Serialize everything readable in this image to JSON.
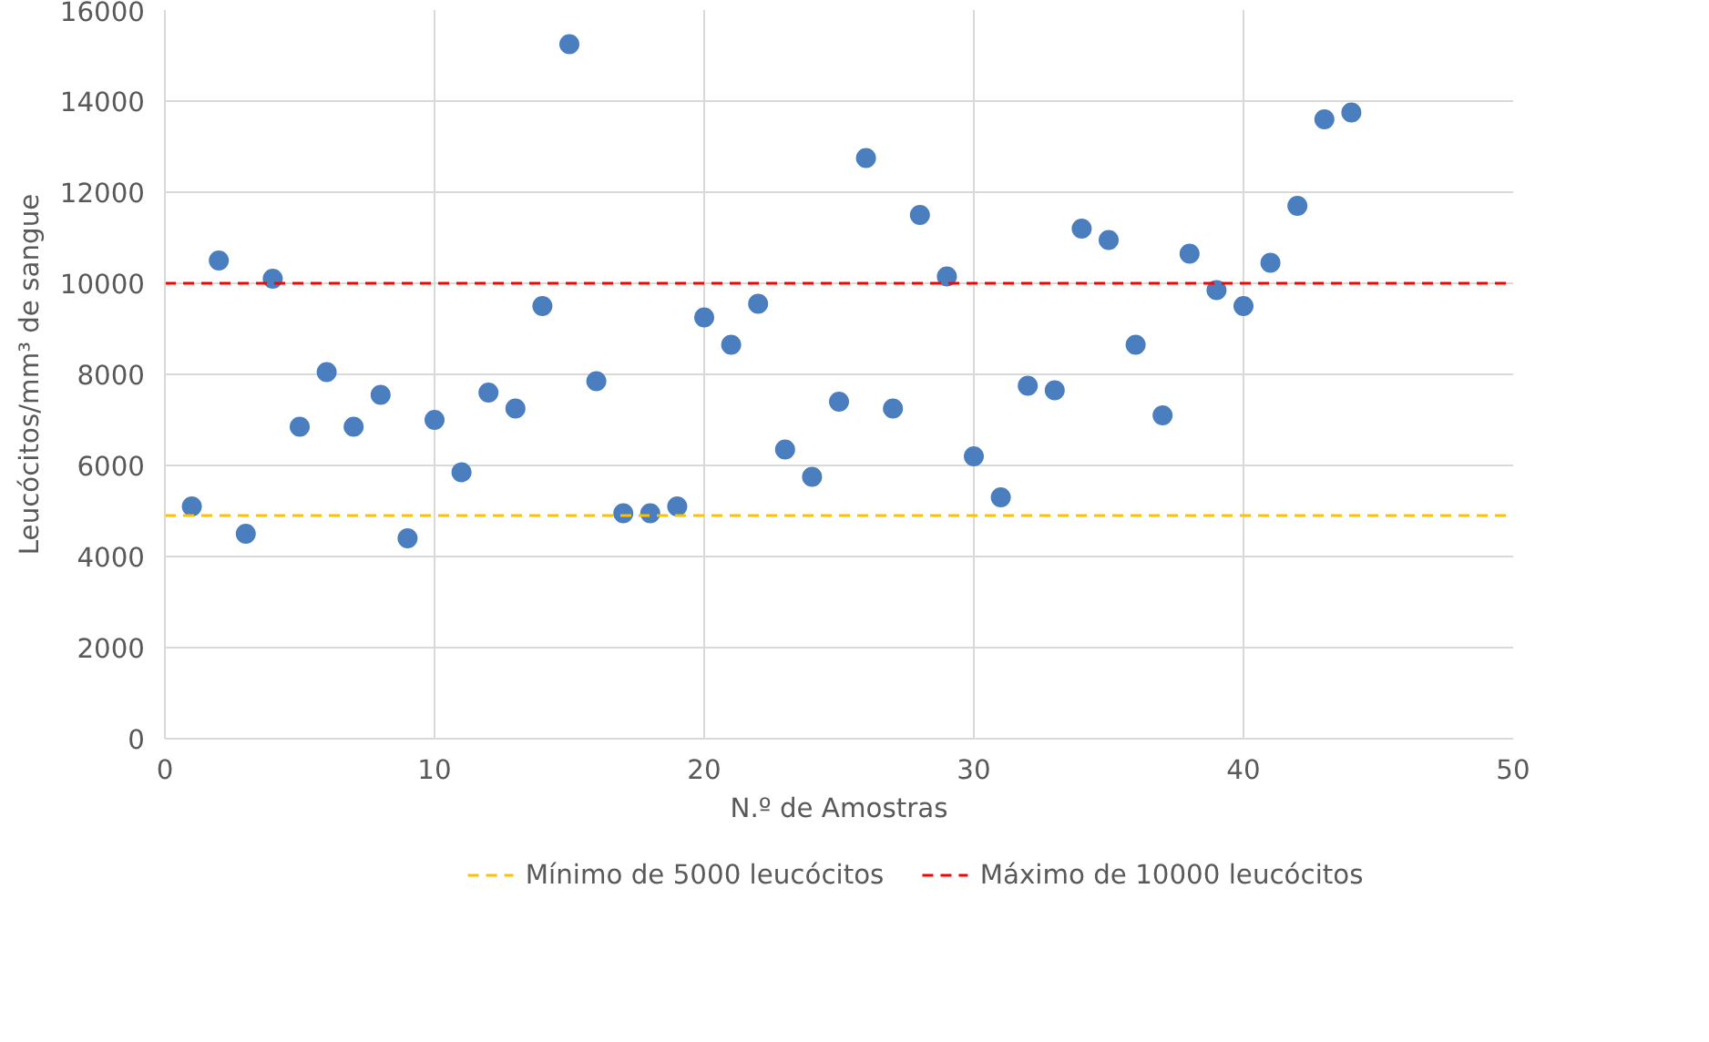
{
  "chart_data": {
    "type": "scatter",
    "xlabel": "N.º de Amostras",
    "ylabel": "Leucócitos/mm³ de sangue",
    "x": [
      1,
      2,
      3,
      4,
      5,
      6,
      7,
      8,
      9,
      10,
      11,
      12,
      13,
      14,
      15,
      16,
      17,
      18,
      19,
      20,
      21,
      22,
      23,
      24,
      25,
      26,
      27,
      28,
      29,
      30,
      31,
      32,
      33,
      34,
      35,
      36,
      37,
      38,
      39,
      40,
      41,
      42,
      43,
      44
    ],
    "series": [
      {
        "color": "#4a7ebf",
        "values": [
          5100,
          10500,
          4500,
          10100,
          6850,
          8050,
          6850,
          7550,
          4400,
          7000,
          5850,
          7600,
          7250,
          9500,
          15250,
          7850,
          4950,
          4950,
          5100,
          9250,
          8650,
          9550,
          6350,
          5750,
          7400,
          12750,
          7250,
          11500,
          10150,
          6200,
          5300,
          7750,
          7650,
          11200,
          10950,
          8650,
          7100,
          10650,
          9850,
          9500,
          10450,
          11700,
          13600,
          13750
        ]
      }
    ],
    "xlim": [
      0,
      50
    ],
    "xticks": [
      0,
      10,
      20,
      30,
      40,
      50
    ],
    "ylim": [
      0,
      16000
    ],
    "yticks": [
      0,
      2000,
      4000,
      6000,
      8000,
      10000,
      12000,
      14000,
      16000
    ],
    "ref_lines": [
      {
        "axis": "y",
        "value": 4900,
        "label": "Mínimo de 5000 leucócitos",
        "color": "#ffc000",
        "line_style": "dashed"
      },
      {
        "axis": "y",
        "value": 10000,
        "label": "Máximo de 10000 leucócitos",
        "color": "#ff0000",
        "line_style": "dashed"
      }
    ],
    "grid": true,
    "legend": "bottom",
    "marker": "circle"
  }
}
